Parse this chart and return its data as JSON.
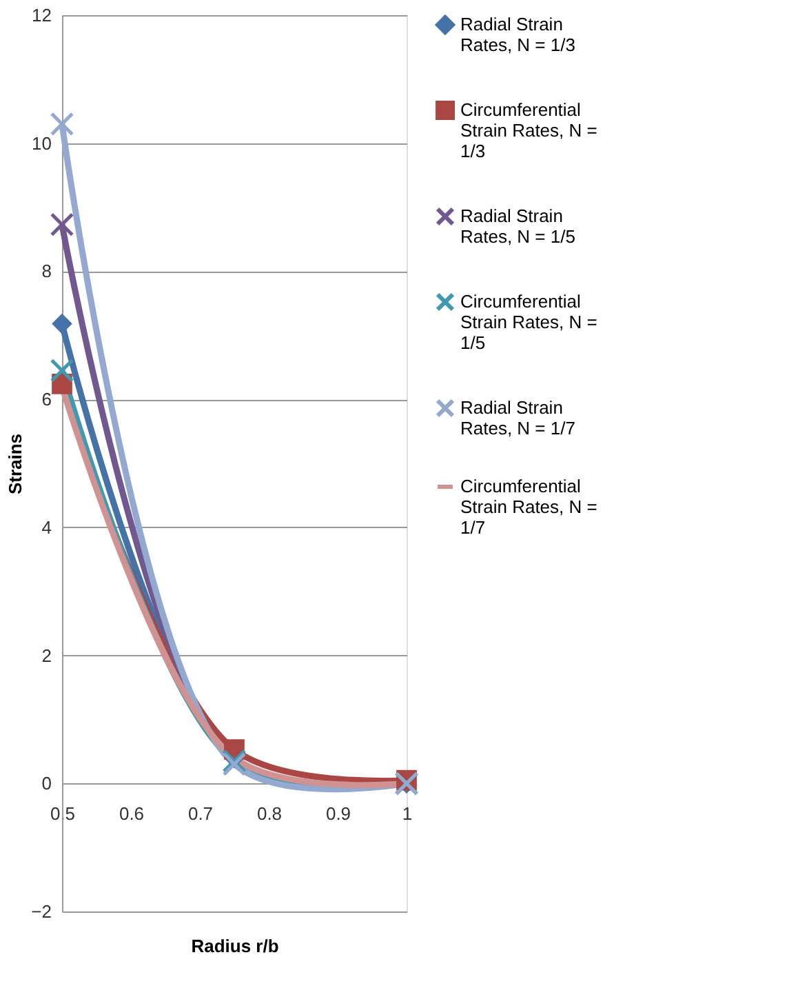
{
  "chart_data": {
    "type": "line",
    "xlabel": "Radius r/b",
    "ylabel": "Strains",
    "x": [
      0.5,
      0.75,
      1
    ],
    "series": [
      {
        "name": "Radial Strain Rates, N = 1/3",
        "color": "#4572a7",
        "marker": "diamond",
        "values": [
          7.18,
          0.4,
          0
        ]
      },
      {
        "name": "Circumferential Strain Rates, N = 1/3",
        "color": "#aa4643",
        "marker": "square",
        "values": [
          6.24,
          0.53,
          0.05
        ]
      },
      {
        "name": "Radial Strain Rates, N = 1/5",
        "color": "#71588f",
        "marker": "cross",
        "values": [
          8.73,
          0.35,
          0
        ]
      },
      {
        "name": "Circumferential Strain Rates, N = 1/5",
        "color": "#4198af",
        "marker": "cross",
        "values": [
          6.45,
          0.35,
          0
        ]
      },
      {
        "name": "Radial Strain Rates, N = 1/7",
        "color": "#93a9cf",
        "marker": "cross",
        "values": [
          10.3,
          0.3,
          0
        ]
      },
      {
        "name": "Circumferential Strain Rates, N = 1/7",
        "color": "#d19392",
        "marker": "none",
        "values": [
          6.2,
          0.4,
          0
        ]
      }
    ],
    "xlim": [
      0.5,
      1
    ],
    "xticks": [
      0.5,
      0.6,
      0.7,
      0.8,
      0.9,
      {
        "value": 1,
        "label": "1"
      }
    ],
    "ylim": [
      -2,
      12
    ],
    "yticks": [
      -2,
      0,
      2,
      4,
      6,
      8,
      10,
      12
    ],
    "grid": "y",
    "legend": "right",
    "line_style": "solid"
  }
}
